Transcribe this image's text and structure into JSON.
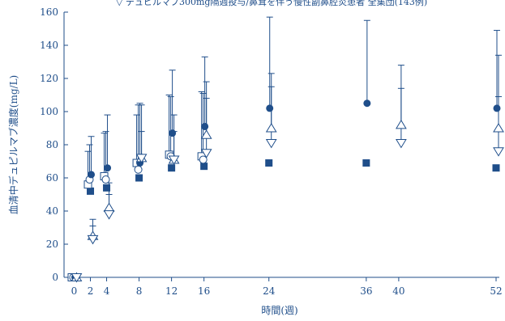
{
  "colors": {
    "main": "#1f4e8a",
    "background": "#ffffff"
  },
  "chart_data": {
    "type": "scatter",
    "top_legend_text": "▽ デュピルマブ300mg隔週投与/鼻茸を伴う慢性副鼻腔炎患者 全集団(143例)",
    "xlabel": "時間(週)",
    "ylabel": "血清中デュピルマブ濃度(mg/L)",
    "xlim": [
      -1,
      53
    ],
    "ylim": [
      0,
      160
    ],
    "x_ticks": [
      0,
      2,
      4,
      8,
      12,
      16,
      24,
      36,
      40,
      52
    ],
    "y_ticks": [
      0,
      20,
      40,
      60,
      80,
      100,
      120,
      140,
      160
    ],
    "series": [
      {
        "marker": "filled-square",
        "points": [
          {
            "x": 0,
            "y": 0
          },
          {
            "x": 2,
            "y": 52
          },
          {
            "x": 4,
            "y": 54
          },
          {
            "x": 8,
            "y": 60
          },
          {
            "x": 12,
            "y": 66
          },
          {
            "x": 16,
            "y": 67
          },
          {
            "x": 24,
            "y": 69
          },
          {
            "x": 36,
            "y": 69
          },
          {
            "x": 52,
            "y": 66
          }
        ]
      },
      {
        "marker": "open-square",
        "points": [
          {
            "x": 0,
            "y": 0,
            "upper": null
          },
          {
            "x": 2,
            "y": 56,
            "upper": 76
          },
          {
            "x": 4,
            "y": 61,
            "upper": 87
          },
          {
            "x": 8,
            "y": 69,
            "upper": 98
          },
          {
            "x": 12,
            "y": 74,
            "upper": 110
          },
          {
            "x": 16,
            "y": 73,
            "upper": 112
          }
        ]
      },
      {
        "marker": "open-circle",
        "points": [
          {
            "x": 0,
            "y": 0,
            "upper": null
          },
          {
            "x": 2,
            "y": 59,
            "upper": 80
          },
          {
            "x": 4,
            "y": 59,
            "upper": 88
          },
          {
            "x": 8,
            "y": 65,
            "upper": 104
          },
          {
            "x": 12,
            "y": 73,
            "upper": 109
          },
          {
            "x": 16,
            "y": 71,
            "upper": 111
          }
        ]
      },
      {
        "marker": "filled-circle",
        "points": [
          {
            "x": 0,
            "y": 0,
            "upper": null
          },
          {
            "x": 2,
            "y": 62,
            "upper": 85
          },
          {
            "x": 4,
            "y": 66,
            "upper": 98
          },
          {
            "x": 8,
            "y": 69,
            "upper": 105
          },
          {
            "x": 12,
            "y": 87,
            "upper": 125
          },
          {
            "x": 16,
            "y": 91,
            "upper": 133
          },
          {
            "x": 24,
            "y": 102,
            "upper": 157
          },
          {
            "x": 36,
            "y": 105,
            "upper": 155
          },
          {
            "x": 52,
            "y": 102,
            "upper": 149
          }
        ]
      },
      {
        "marker": "open-triangle-up",
        "points": [
          {
            "x": 0,
            "y": 0,
            "upper": null
          },
          {
            "x": 2,
            "y": 25,
            "upper": 35
          },
          {
            "x": 4,
            "y": 42,
            "upper": 57
          },
          {
            "x": 8,
            "y": 72,
            "upper": 104
          },
          {
            "x": 12,
            "y": 71,
            "upper": 98
          },
          {
            "x": 16,
            "y": 86,
            "upper": 118
          },
          {
            "x": 24,
            "y": 90,
            "upper": 123
          },
          {
            "x": 40,
            "y": 92,
            "upper": 128
          },
          {
            "x": 52,
            "y": 90,
            "upper": 134
          }
        ]
      },
      {
        "marker": "open-triangle-down",
        "points": [
          {
            "x": 0,
            "y": 0,
            "upper": null
          },
          {
            "x": 2,
            "y": 23,
            "upper": 31
          },
          {
            "x": 4,
            "y": 38,
            "upper": 50
          },
          {
            "x": 8,
            "y": 72,
            "upper": 88
          },
          {
            "x": 12,
            "y": 71,
            "upper": 88
          },
          {
            "x": 16,
            "y": 75,
            "upper": 108
          },
          {
            "x": 24,
            "y": 81,
            "upper": 115
          },
          {
            "x": 40,
            "y": 81,
            "upper": 114
          },
          {
            "x": 52,
            "y": 76,
            "upper": 109
          }
        ]
      }
    ]
  }
}
